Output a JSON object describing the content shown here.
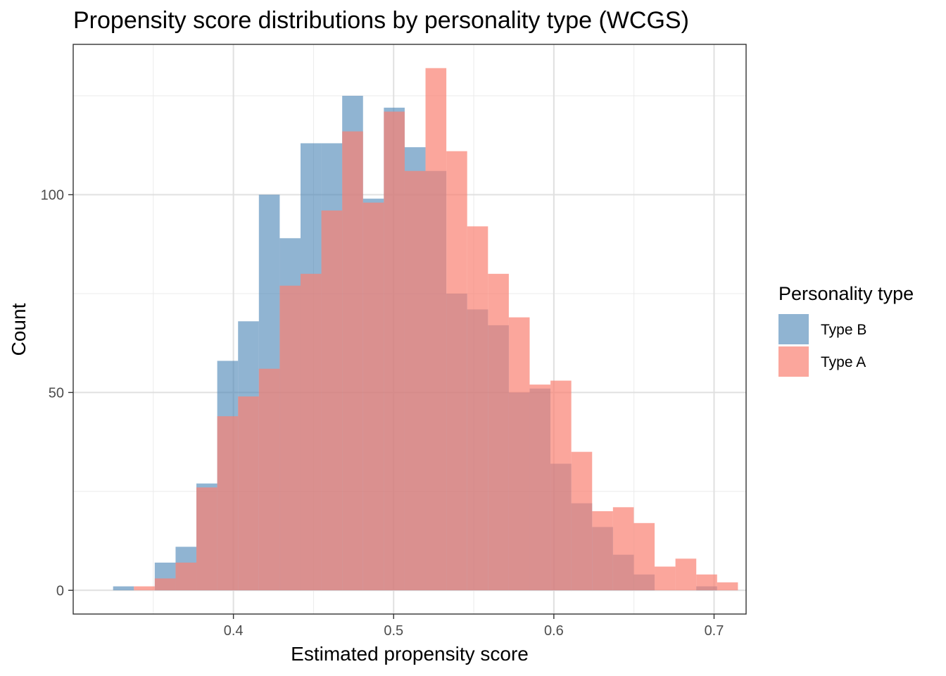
{
  "chart_data": {
    "type": "histogram",
    "title": "Propensity score distributions by personality type (WCGS)",
    "xlabel": "Estimated propensity score",
    "ylabel": "Count",
    "xlim": [
      0.3,
      0.72
    ],
    "ylim": [
      -6,
      138
    ],
    "xticks": [
      0.4,
      0.5,
      0.6,
      0.7
    ],
    "xtick_labels": [
      "0.4",
      "0.5",
      "0.6",
      "0.7"
    ],
    "yticks": [
      0,
      50,
      100
    ],
    "ytick_labels": [
      "0",
      "50",
      "100"
    ],
    "grid": true,
    "bin_start": 0.3249,
    "bin_width": 0.013,
    "legend": {
      "title": "Personality type",
      "position": "right",
      "entries": [
        {
          "label": "Type B",
          "color": "#4682B4"
        },
        {
          "label": "Type A",
          "color": "#FA8072"
        }
      ]
    },
    "series": [
      {
        "name": "Type B",
        "color": "#4682B4",
        "values": [
          1,
          0,
          7,
          11,
          27,
          58,
          68,
          100,
          89,
          113,
          113,
          125,
          99,
          122,
          112,
          106,
          75,
          71,
          67,
          50,
          51,
          32,
          22,
          16,
          9,
          4,
          0,
          0,
          1
        ]
      },
      {
        "name": "Type A",
        "color": "#FA8072",
        "values": [
          0,
          1,
          3,
          7,
          26,
          44,
          49,
          56,
          77,
          80,
          96,
          116,
          98,
          121,
          106,
          132,
          111,
          92,
          80,
          69,
          52,
          53,
          35,
          20,
          21,
          17,
          6,
          8,
          4,
          2
        ]
      }
    ]
  }
}
